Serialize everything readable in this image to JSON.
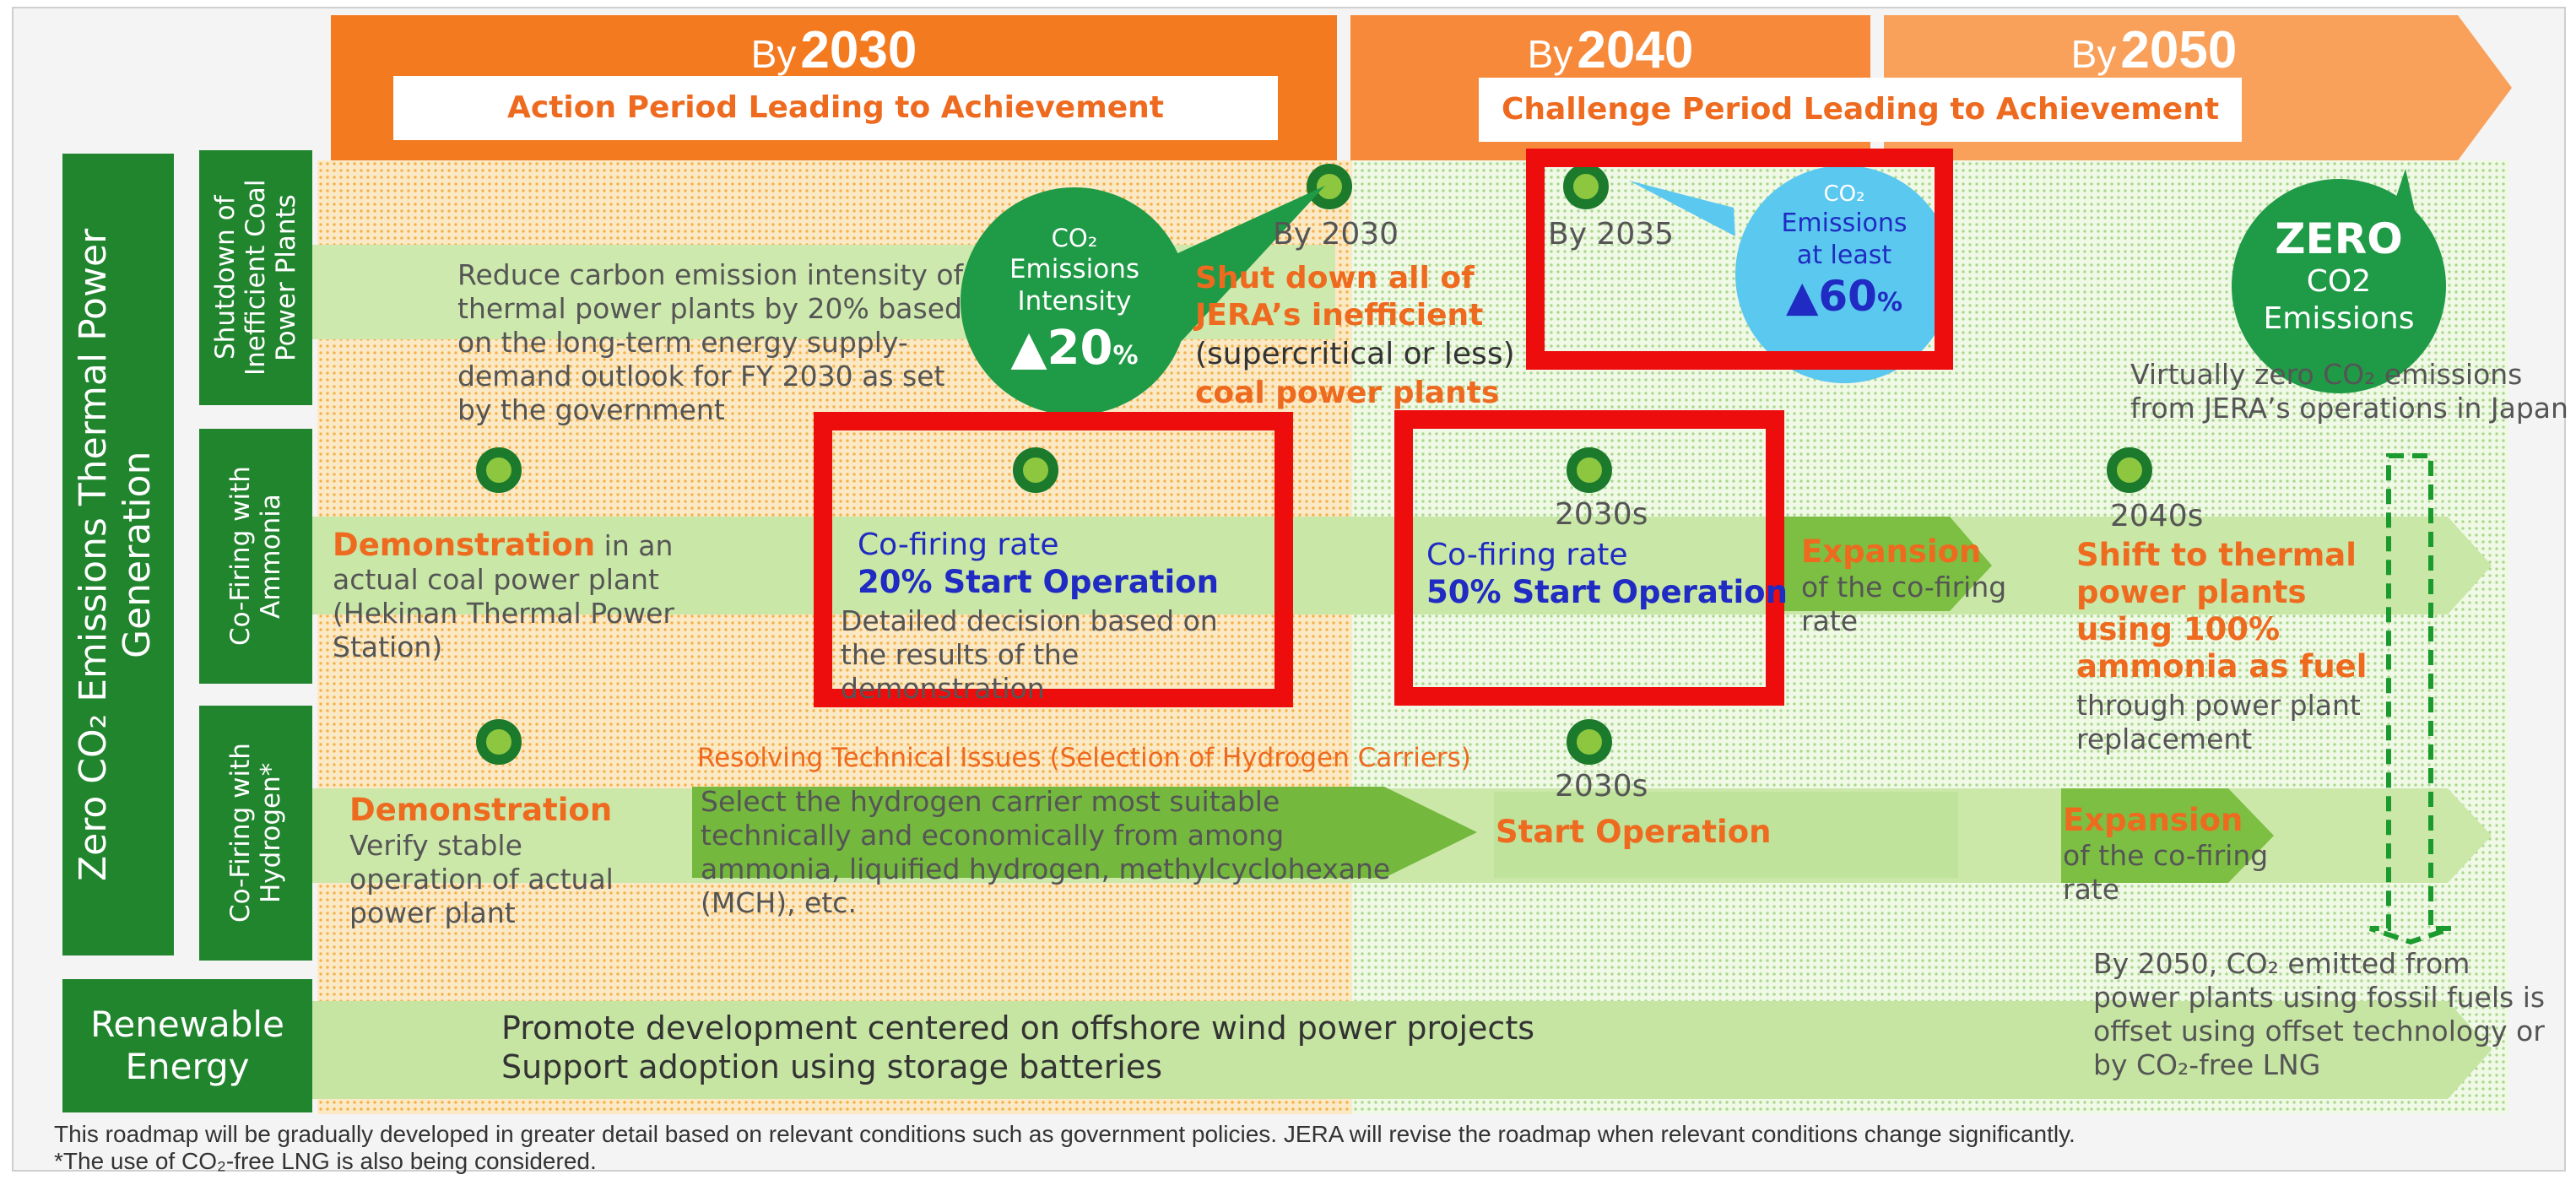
{
  "headers": [
    {
      "by": "By",
      "year": "2030",
      "sub": "Action Period Leading to Achievement"
    },
    {
      "by": "By",
      "year": "2040",
      "sub": "Challenge Period Leading to Achievement"
    },
    {
      "by": "By",
      "year": "2050"
    }
  ],
  "left_labels": {
    "main": "Zero CO₂ Emissions Thermal Power Generation",
    "shutdown": "Shutdown of Inefficient Coal Power Plants",
    "ammonia": "Co-Firing with Ammonia",
    "hydrogen": "Co-Firing with Hydrogen*",
    "renewable": "Renewable Energy"
  },
  "shutdown_row": {
    "reduce_text": "Reduce carbon emission intensity of thermal power plants by 20% based on the long-term energy supply-demand outlook for FY 2030 as set by the government",
    "bubble1": {
      "line1": "CO₂",
      "line2": "Emissions",
      "line3": "Intensity",
      "value": "▲20",
      "unit": "%"
    },
    "by2030": "By 2030",
    "shut_orange_1": "Shut down all of",
    "shut_orange_2": "JERA’s inefficient",
    "shut_gray": "(supercritical or less)",
    "shut_orange_3": "coal power plants",
    "by2035": "By 2035",
    "bubble2": {
      "line1": "CO₂",
      "line2": "Emissions",
      "line3": "at least",
      "value": "▲60",
      "unit": "%"
    },
    "zero": {
      "title": "ZERO",
      "line1": "CO2",
      "line2": "Emissions"
    },
    "zero_note": "Virtually zero CO₂ emissions from JERA’s operations in Japan"
  },
  "ammonia_row": {
    "demo_orange": "Demonstration",
    "demo_rest": " in an actual coal power plant (Hekinan Thermal Power Station)",
    "box1_line1": "Co-firing rate",
    "box1_line2": "20% Start Operation",
    "box1_note": "Detailed decision based on the results of the demonstration",
    "decade1": "2030s",
    "box2_line1": "Co-firing rate",
    "box2_line2": "50% Start Operation",
    "expansion": "Expansion",
    "expansion_note": "of the co-firing rate",
    "decade2": "2040s",
    "shift_orange": "Shift to thermal power plants using 100% ammonia as fuel",
    "shift_note": "through power plant replacement"
  },
  "hydrogen_row": {
    "resolving": "Resolving Technical Issues (Selection of Hydrogen Carriers)",
    "demo_orange": "Demonstration",
    "demo_note": "Verify stable operation of actual power plant",
    "select_text": "Select the hydrogen carrier most suitable technically and economically from among ammonia, liquified hydrogen, methylcyclohexane (MCH), etc.",
    "decade": "2030s",
    "start_op": "Start Operation",
    "expansion": "Expansion",
    "expansion_note": "of the co-firing rate",
    "offset_note": "By 2050, CO₂ emitted from power plants using fossil fuels is offset using offset technology or by CO₂-free LNG"
  },
  "renewable_row": {
    "line1": "Promote development centered on offshore wind power projects",
    "line2": "Support adoption using storage batteries"
  },
  "footnotes": {
    "line1": "This roadmap will be gradually developed in greater detail based on relevant conditions such as government policies. JERA will revise the roadmap when relevant conditions change significantly.",
    "line2": "*The use of CO₂-free LNG is also being considered."
  },
  "colors": {
    "orange_dark": "#f47a20",
    "orange_mid": "#f7893a",
    "orange_light": "#f9a05a",
    "green_dark": "#21852e",
    "green_bubble": "#1f9a46",
    "blue_bubble": "#5bc8ef",
    "red_box": "#ee0d0d",
    "orange_text": "#ee6a1f",
    "blue_text": "#1f2bc2"
  }
}
